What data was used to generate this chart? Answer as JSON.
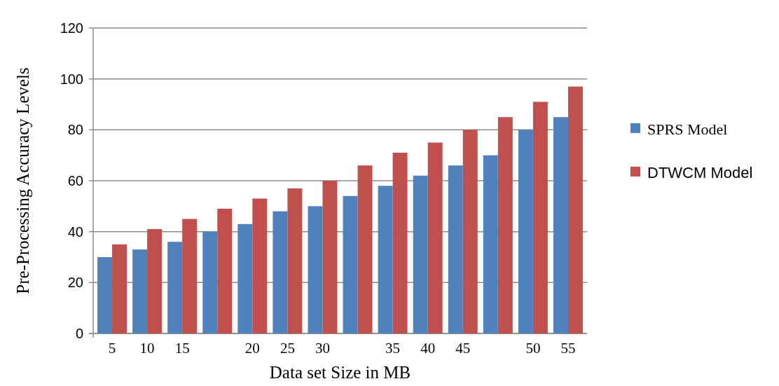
{
  "chart_data": {
    "type": "bar",
    "xlabel": "Data set Size in MB",
    "ylabel": "Pre-Processing Accuracy Levels",
    "categories": [
      "5",
      "10",
      "15",
      null,
      "20",
      "25",
      "30",
      null,
      "35",
      "40",
      "45",
      null,
      "50",
      "55"
    ],
    "series": [
      {
        "name": "SPRS Model",
        "color": "#4f81bd",
        "values": [
          30,
          33,
          36,
          40,
          43,
          48,
          50,
          54,
          58,
          62,
          66,
          70,
          80,
          85
        ]
      },
      {
        "name": "DTWCM Model",
        "color": "#c0504d",
        "values": [
          35,
          41,
          45,
          49,
          53,
          57,
          60,
          66,
          71,
          75,
          80,
          85,
          91,
          97
        ]
      }
    ],
    "ylim": [
      0,
      120
    ],
    "yticks": [
      0,
      20,
      40,
      60,
      80,
      100,
      120
    ],
    "grid": "y",
    "legend": "right"
  }
}
